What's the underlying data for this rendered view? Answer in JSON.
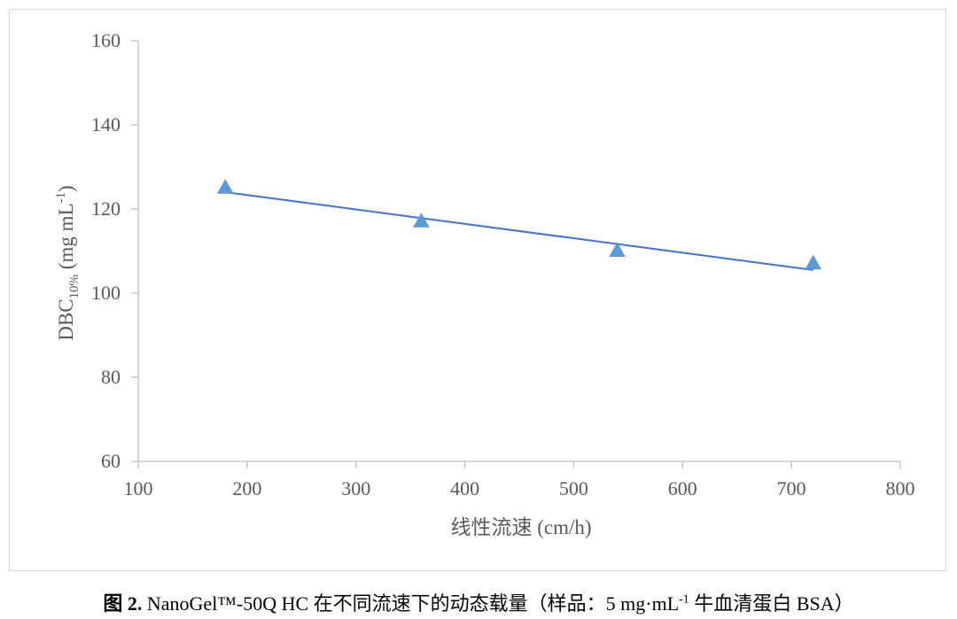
{
  "chart_data": {
    "type": "scatter",
    "title": "",
    "xlabel": "线性流速 (cm/h)",
    "ylabel": {
      "main": "DBC",
      "sub": "10%",
      "unit_pre": " (mg mL",
      "sup": "-1",
      "unit_post": ")"
    },
    "xlim": [
      100,
      800
    ],
    "ylim": [
      60,
      160
    ],
    "xticks": [
      100,
      200,
      300,
      400,
      500,
      600,
      700,
      800
    ],
    "yticks": [
      60,
      80,
      100,
      120,
      140,
      160
    ],
    "grid": false,
    "legend": "none",
    "series": [
      {
        "marker": "triangle",
        "color": "#5b9bd5",
        "x": [
          180,
          360,
          540,
          720
        ],
        "y": [
          125,
          117,
          110,
          107
        ]
      }
    ],
    "trendline": {
      "type": "linear",
      "color": "#4472c4",
      "x": [
        180,
        720
      ],
      "y": [
        124.0,
        105.5
      ]
    }
  },
  "caption": {
    "label": "图 2.",
    "text": " NanoGel™-50Q HC 在不同流速下的动态载量（样品：5 mg·mL",
    "sup": "-1",
    "text_end": " 牛血清蛋白 BSA）"
  }
}
